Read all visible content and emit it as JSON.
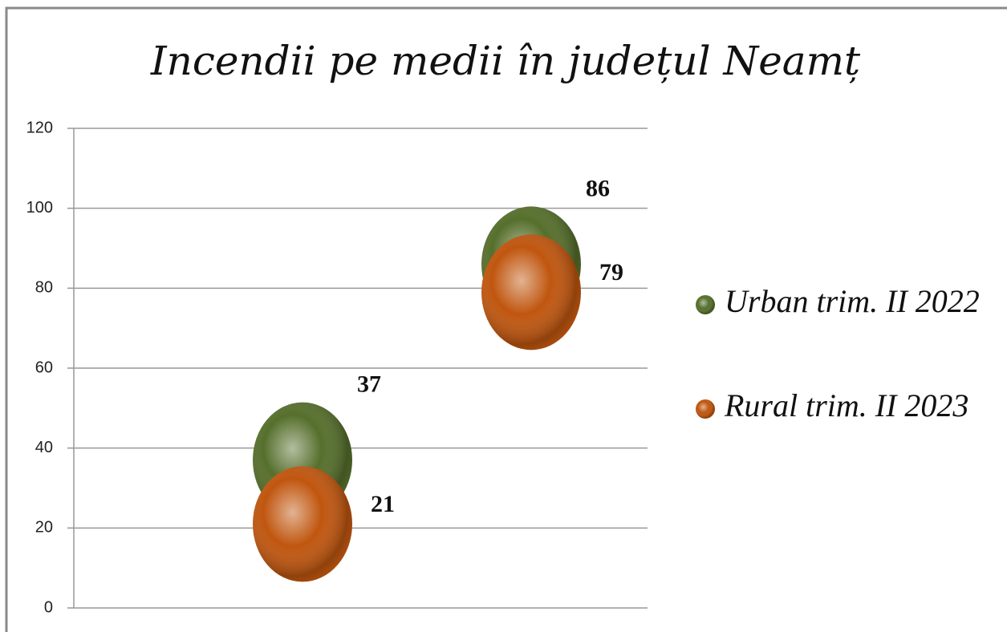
{
  "chart_data": {
    "type": "scatter",
    "title": "Incendii pe medii în județul Neamț",
    "categories": [
      null,
      null
    ],
    "series": [
      {
        "name": "Urban trim. II 2022",
        "color": "#566f2c",
        "values": [
          37,
          86
        ]
      },
      {
        "name": "Rural trim. II 2023",
        "color": "#c0560f",
        "values": [
          21,
          79
        ]
      }
    ],
    "ylim": [
      0,
      120
    ],
    "yticks": [
      0,
      20,
      40,
      60,
      80,
      100,
      120
    ],
    "grid": true,
    "legend": "right"
  }
}
